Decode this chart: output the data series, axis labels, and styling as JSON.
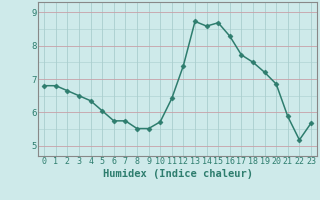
{
  "x": [
    0,
    1,
    2,
    3,
    4,
    5,
    6,
    7,
    8,
    9,
    10,
    11,
    12,
    13,
    14,
    15,
    16,
    17,
    18,
    19,
    20,
    21,
    22,
    23
  ],
  "y": [
    6.8,
    6.8,
    6.65,
    6.5,
    6.35,
    6.05,
    5.75,
    5.75,
    5.52,
    5.52,
    5.72,
    6.42,
    7.4,
    8.72,
    8.58,
    8.68,
    8.28,
    7.72,
    7.5,
    7.2,
    6.85,
    5.88,
    5.18,
    5.68
  ],
  "xlabel": "Humidex (Indice chaleur)",
  "line_color": "#2e7d6e",
  "marker": "D",
  "marker_size": 2.5,
  "bg_color": "#ceeaea",
  "grid_color_v": "#aacece",
  "grid_color_h": "#c8a0a8",
  "ylim": [
    4.7,
    9.3
  ],
  "xlim": [
    -0.5,
    23.5
  ],
  "yticks": [
    5,
    6,
    7,
    8,
    9
  ],
  "xticks": [
    0,
    1,
    2,
    3,
    4,
    5,
    6,
    7,
    8,
    9,
    10,
    11,
    12,
    13,
    14,
    15,
    16,
    17,
    18,
    19,
    20,
    21,
    22,
    23
  ],
  "tick_color": "#2e7d6e",
  "spine_color": "#888888",
  "xlabel_fontsize": 7.5,
  "tick_fontsize": 6.0,
  "linewidth": 1.1
}
